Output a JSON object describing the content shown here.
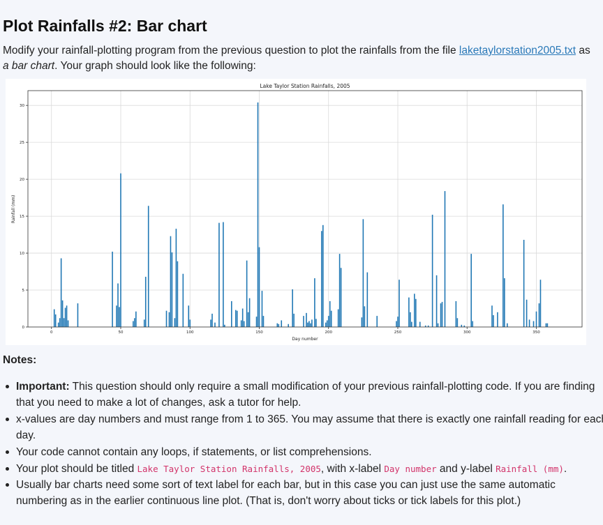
{
  "title": "Plot Rainfalls #2: Bar chart",
  "intro": {
    "before_link": "Modify your rainfall-plotting program from the previous question to plot the rainfalls from the file ",
    "link_text": "laketaylorstation2005.txt",
    "after_link": " as ",
    "emphasis": "a bar chart",
    "rest": ". Your graph should look like the following:"
  },
  "notes": {
    "heading": "Notes:",
    "item1": {
      "bold": "Important:",
      "text": " This question should only require a small modification of your previous rainfall-plotting code. If you are finding that you need to make a lot of changes, ask a tutor for help."
    },
    "item2": "x-values are day numbers and must range from 1 to 365. You may assume that there is exactly one rainfall reading for each day.",
    "item3": "Your code cannot contain any loops, if statements, or list comprehensions.",
    "item4": {
      "part1": "Your plot should be titled ",
      "code1": "Lake Taylor Station Rainfalls, 2005",
      "part2": ", with x-label ",
      "code2": "Day number",
      "part3": " and y-label ",
      "code3": "Rainfall (mm)",
      "part4": "."
    },
    "item5": "Usually bar charts need some sort of text label for each bar, but in this case you can just use the same automatic numbering as in the earlier continuous line plot. (That is, don't worry about ticks or tick labels for this plot.)"
  },
  "chart_data": {
    "type": "bar",
    "title": "Lake Taylor Station Rainfalls, 2005",
    "xlabel": "Day number",
    "ylabel": "Rainfall (mm)",
    "xlim": [
      -17,
      383
    ],
    "ylim": [
      0,
      32
    ],
    "xticks": [
      0,
      50,
      100,
      150,
      200,
      250,
      300,
      350
    ],
    "yticks": [
      0,
      5,
      10,
      15,
      20,
      25,
      30
    ],
    "grid": true,
    "bar_color": "#1f77b4",
    "bars": [
      [
        2,
        2.4
      ],
      [
        3,
        1.7
      ],
      [
        5,
        0.6
      ],
      [
        6,
        1.2
      ],
      [
        7,
        9.3
      ],
      [
        8,
        3.6
      ],
      [
        9,
        1.2
      ],
      [
        10,
        2.6
      ],
      [
        11,
        2.9
      ],
      [
        12,
        0.9
      ],
      [
        19,
        3.2
      ],
      [
        44,
        10.2
      ],
      [
        47,
        2.9
      ],
      [
        48,
        5.9
      ],
      [
        49,
        2.7
      ],
      [
        50,
        20.8
      ],
      [
        59,
        0.8
      ],
      [
        60,
        1.2
      ],
      [
        61,
        2.1
      ],
      [
        67,
        1.0
      ],
      [
        68,
        6.8
      ],
      [
        70,
        16.4
      ],
      [
        83,
        2.2
      ],
      [
        85,
        2.0
      ],
      [
        86,
        12.3
      ],
      [
        87,
        10.1
      ],
      [
        89,
        1.2
      ],
      [
        90,
        13.3
      ],
      [
        91,
        8.9
      ],
      [
        95,
        7.2
      ],
      [
        99,
        2.9
      ],
      [
        100,
        1.0
      ],
      [
        115,
        1.0
      ],
      [
        116,
        1.8
      ],
      [
        118,
        0.6
      ],
      [
        121,
        14.1
      ],
      [
        124,
        14.2
      ],
      [
        125,
        0.3
      ],
      [
        130,
        3.5
      ],
      [
        133,
        2.3
      ],
      [
        134,
        2.2
      ],
      [
        137,
        0.9
      ],
      [
        138,
        2.5
      ],
      [
        139,
        0.8
      ],
      [
        141,
        9.0
      ],
      [
        142,
        2.0
      ],
      [
        143,
        3.9
      ],
      [
        148,
        1.4
      ],
      [
        149,
        30.4
      ],
      [
        150,
        10.8
      ],
      [
        152,
        4.9
      ],
      [
        153,
        1.5
      ],
      [
        163,
        0.5
      ],
      [
        164,
        0.4
      ],
      [
        166,
        0.9
      ],
      [
        171,
        0.4
      ],
      [
        174,
        5.1
      ],
      [
        175,
        1.8
      ],
      [
        182,
        1.5
      ],
      [
        184,
        1.9
      ],
      [
        185,
        0.6
      ],
      [
        186,
        0.8
      ],
      [
        187,
        0.5
      ],
      [
        188,
        1.0
      ],
      [
        190,
        6.6
      ],
      [
        191,
        1.1
      ],
      [
        195,
        13.0
      ],
      [
        196,
        13.8
      ],
      [
        198,
        0.6
      ],
      [
        199,
        0.9
      ],
      [
        200,
        1.5
      ],
      [
        201,
        3.5
      ],
      [
        202,
        2.2
      ],
      [
        207,
        2.4
      ],
      [
        208,
        9.9
      ],
      [
        209,
        8.0
      ],
      [
        224,
        1.3
      ],
      [
        225,
        14.6
      ],
      [
        226,
        2.8
      ],
      [
        228,
        7.4
      ],
      [
        235,
        1.5
      ],
      [
        249,
        0.8
      ],
      [
        250,
        1.4
      ],
      [
        251,
        6.4
      ],
      [
        258,
        4.0
      ],
      [
        259,
        2.0
      ],
      [
        260,
        0.7
      ],
      [
        262,
        4.5
      ],
      [
        263,
        3.8
      ],
      [
        266,
        0.7
      ],
      [
        270,
        0.2
      ],
      [
        272,
        0.2
      ],
      [
        275,
        15.2
      ],
      [
        278,
        7.0
      ],
      [
        279,
        0.5
      ],
      [
        281,
        3.2
      ],
      [
        282,
        3.4
      ],
      [
        284,
        18.4
      ],
      [
        292,
        3.5
      ],
      [
        293,
        1.2
      ],
      [
        296,
        0.3
      ],
      [
        298,
        0.2
      ],
      [
        303,
        9.9
      ],
      [
        304,
        0.8
      ],
      [
        318,
        2.9
      ],
      [
        319,
        1.6
      ],
      [
        322,
        2.0
      ],
      [
        326,
        16.6
      ],
      [
        327,
        6.6
      ],
      [
        329,
        0.5
      ],
      [
        341,
        11.8
      ],
      [
        343,
        3.7
      ],
      [
        345,
        1.0
      ],
      [
        348,
        0.8
      ],
      [
        350,
        2.1
      ],
      [
        352,
        3.2
      ],
      [
        353,
        6.4
      ],
      [
        357,
        0.5
      ],
      [
        358,
        0.5
      ]
    ]
  }
}
